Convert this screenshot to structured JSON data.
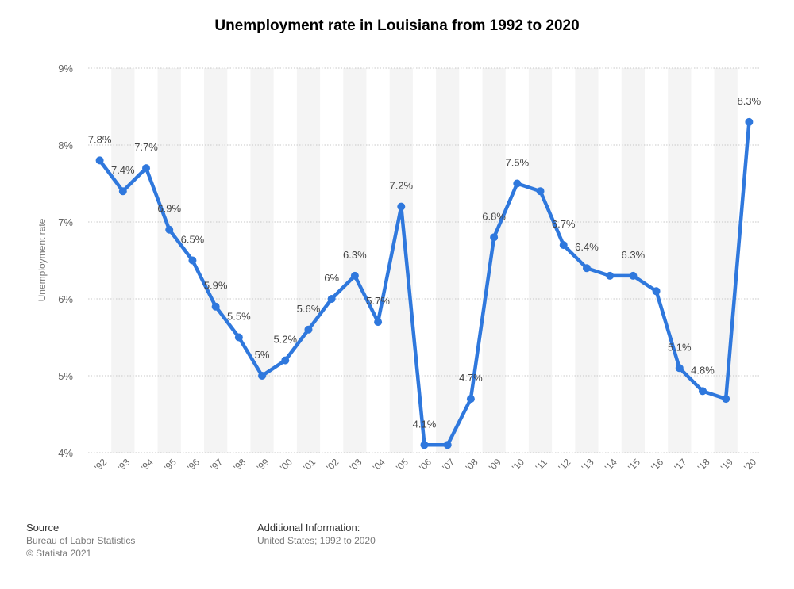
{
  "chart_data": {
    "type": "line",
    "title": "Unemployment rate in Louisiana from 1992 to 2020",
    "xlabel": "",
    "ylabel": "Unemployment rate",
    "ylim": [
      4,
      9
    ],
    "yticks": [
      {
        "value": 9,
        "label": "9%"
      },
      {
        "value": 8,
        "label": "8%"
      },
      {
        "value": 7,
        "label": "7%"
      },
      {
        "value": 6,
        "label": "6%"
      },
      {
        "value": 5,
        "label": "5%"
      },
      {
        "value": 4,
        "label": "4%"
      }
    ],
    "categories": [
      "'92",
      "'93",
      "'94",
      "'95",
      "'96",
      "'97",
      "'98",
      "'99",
      "'00",
      "'01",
      "'02",
      "'03",
      "'04",
      "'05",
      "'06",
      "'07",
      "'08",
      "'09",
      "'10",
      "'11",
      "'12",
      "'13",
      "'14",
      "'15",
      "'16",
      "'17",
      "'18",
      "'19",
      "'20"
    ],
    "series": [
      {
        "name": "Unemployment rate",
        "color": "#2f78dd",
        "values": [
          7.8,
          7.4,
          7.7,
          6.9,
          6.5,
          5.9,
          5.5,
          5.0,
          5.2,
          5.6,
          6.0,
          6.3,
          5.7,
          7.2,
          4.1,
          4.1,
          4.7,
          6.8,
          7.5,
          7.4,
          6.7,
          6.4,
          6.3,
          6.3,
          6.1,
          5.1,
          4.8,
          4.7,
          8.3
        ],
        "data_labels": [
          "7.8%",
          "7.4%",
          "7.7%",
          "6.9%",
          "6.5%",
          "5.9%",
          "5.5%",
          "5%",
          "5.2%",
          "5.6%",
          "6%",
          "6.3%",
          "5.7%",
          "7.2%",
          "4.1%",
          "",
          "4.7%",
          "6.8%",
          "7.5%",
          "",
          "6.7%",
          "6.4%",
          "",
          "6.3%",
          "",
          "5.1%",
          "4.8%",
          "",
          "8.3%"
        ]
      }
    ],
    "grid": true,
    "legend": "none"
  },
  "footer": {
    "source_heading": "Source",
    "source_line1": "Bureau of Labor Statistics",
    "source_line2": "© Statista 2021",
    "info_heading": "Additional Information:",
    "info_line1": "United States; 1992 to 2020"
  },
  "colors": {
    "line": "#2f78dd",
    "band": "#f4f4f4",
    "grid": "#c8c8c8",
    "axis_text": "#666666",
    "label_text": "#444444"
  }
}
